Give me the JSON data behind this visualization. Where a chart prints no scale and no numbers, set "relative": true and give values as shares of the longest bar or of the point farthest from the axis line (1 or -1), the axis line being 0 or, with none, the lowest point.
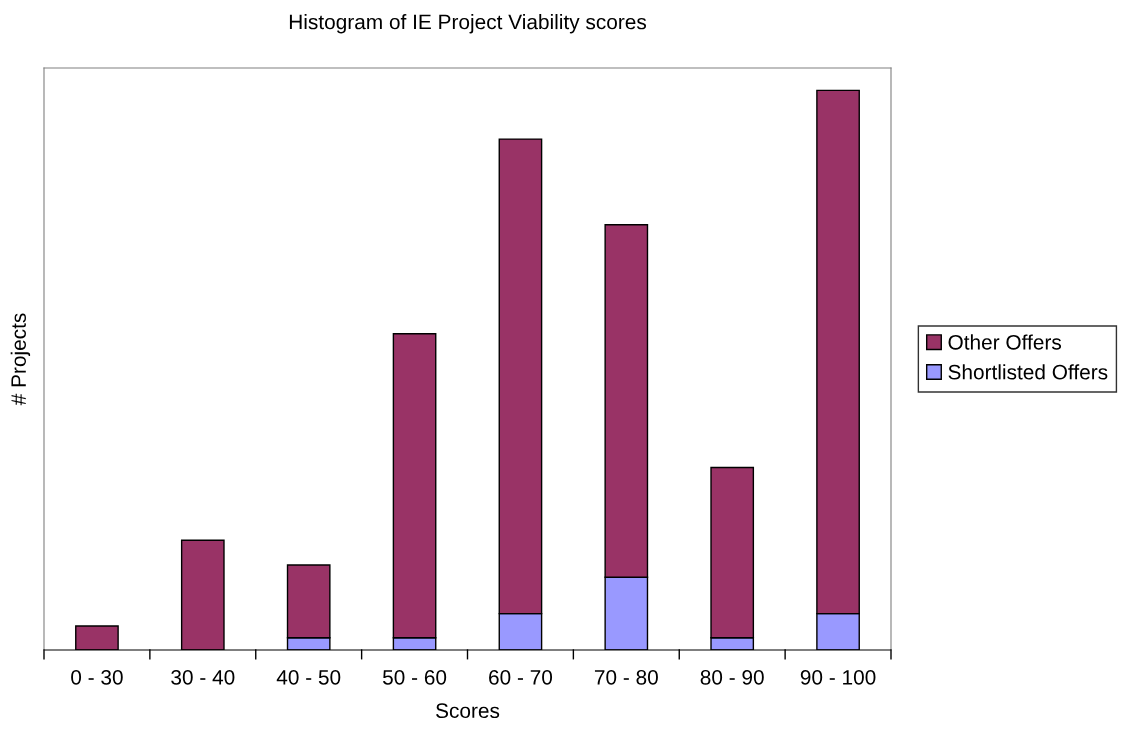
{
  "chart_data": {
    "type": "bar",
    "title": "Histogram of IE Project Viability scores",
    "xlabel": "Scores",
    "ylabel": "# Projects",
    "categories": [
      "0 - 30",
      "30 - 40",
      "40 - 50",
      "50 - 60",
      "60 - 70",
      "70 - 80",
      "80 - 90",
      "90 - 100"
    ],
    "relative": true,
    "stacked": true,
    "legend": "right",
    "grid": false,
    "series": [
      {
        "name": "Shortlisted Offers",
        "color": "#9999ff",
        "values": [
          0,
          0,
          0.022,
          0.022,
          0.065,
          0.13,
          0.022,
          0.065
        ]
      },
      {
        "name": "Other Offers",
        "color": "#993366",
        "values": [
          0.043,
          0.196,
          0.13,
          0.543,
          0.848,
          0.63,
          0.304,
          0.935
        ]
      }
    ]
  }
}
